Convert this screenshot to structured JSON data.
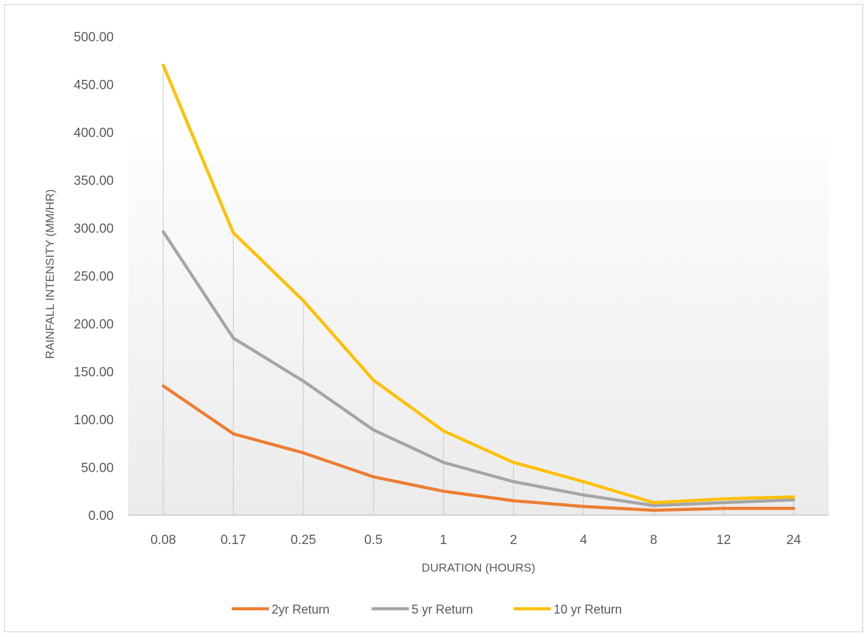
{
  "chart_data": {
    "type": "line",
    "categories": [
      "0.08",
      "0.17",
      "0.25",
      "0.5",
      "1",
      "2",
      "4",
      "8",
      "12",
      "24"
    ],
    "xlabel": "DURATION (HOURS)",
    "ylabel": "RAINFALL INTENSITY (MM/HR)",
    "ylim": [
      0,
      500
    ],
    "y_ticks": [
      "0.00",
      "50.00",
      "100.00",
      "150.00",
      "200.00",
      "250.00",
      "300.00",
      "350.00",
      "400.00",
      "450.00",
      "500.00"
    ],
    "grid": "vertical drop lines at categories",
    "legend_position": "bottom",
    "series": [
      {
        "name": "2yr Return",
        "color": "#ED7D31",
        "values": [
          135,
          85,
          65,
          40,
          25,
          15,
          9,
          5,
          7,
          7
        ]
      },
      {
        "name": "5 yr Return",
        "color": "#A5A5A5",
        "values": [
          296,
          185,
          140,
          89,
          55,
          35,
          21,
          10,
          13,
          16
        ]
      },
      {
        "name": "10 yr Return",
        "color": "#FFC000",
        "values": [
          470,
          295,
          224,
          141,
          88,
          55,
          35,
          13,
          17,
          19
        ]
      }
    ]
  }
}
